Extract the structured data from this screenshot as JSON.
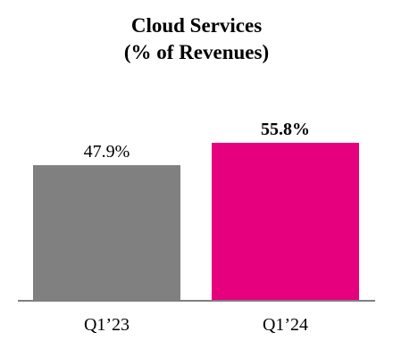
{
  "chart_data": {
    "type": "bar",
    "title": "Cloud Services",
    "subtitle": "(% of Revenues)",
    "categories": [
      "Q1’23",
      "Q1’24"
    ],
    "values": [
      47.9,
      55.8
    ],
    "data_labels": [
      "47.9%",
      "55.8%"
    ],
    "bar_colors": [
      "#808080",
      "#e6007e"
    ],
    "label_bold": [
      false,
      true
    ],
    "ylim": [
      0,
      55.8
    ],
    "grid": false,
    "legend": "none",
    "axis_line_color": "#7f7f7f"
  }
}
